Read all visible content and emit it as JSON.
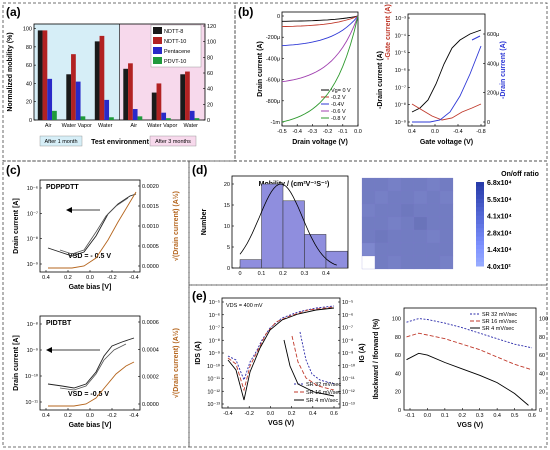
{
  "panels": {
    "a": "(a)",
    "b": "(b)",
    "c": "(c)",
    "d": "(d)",
    "e": "(e)"
  },
  "chart_data": [
    {
      "panel": "(a)",
      "type": "bar",
      "ylabel": "Normalized mobility (%)",
      "xlabel": "Test environment",
      "yticks": [
        "0",
        "20",
        "40",
        "60",
        "80",
        "100"
      ],
      "y2ticks": [
        "0",
        "20",
        "40",
        "60",
        "80",
        "100",
        "120"
      ],
      "ylim": [
        0,
        105
      ],
      "categories": [
        "Air",
        "Water Vapor",
        "Water",
        "Air",
        "Water Vapor",
        "Water"
      ],
      "groups": [
        "After 1 month",
        "After 3 months"
      ],
      "series": [
        {
          "name": "NDTT-8",
          "color": "#1a1a1a",
          "values": [
            98,
            50,
            86,
            56,
            30,
            50
          ]
        },
        {
          "name": "NDTT-10",
          "color": "#b22222",
          "values": [
            98,
            72,
            92,
            62,
            40,
            53
          ]
        },
        {
          "name": "Pentacene",
          "color": "#2929c8",
          "values": [
            45,
            42,
            22,
            12,
            8,
            10
          ]
        },
        {
          "name": "PDVT-10",
          "color": "#1f9a3c",
          "values": [
            10,
            4,
            3,
            4,
            2,
            2
          ]
        }
      ]
    },
    {
      "panel": "(b)",
      "type": "line",
      "xlabel": "Drain voltage (V)",
      "ylabel": "Drain current (A)",
      "xticks": [
        "-0.5",
        "-0.4",
        "-0.3",
        "-0.2",
        "-0.1",
        "0.0"
      ],
      "yticks": [
        "0",
        "-200μ",
        "-400μ",
        "-600μ",
        "-800μ",
        "-1m"
      ],
      "legend_title": "Vg= 0 V",
      "series": [
        {
          "name": "Vg= 0 V",
          "color": "#000000",
          "end": 0.05
        },
        {
          "name": "-0.2 V",
          "color": "#c0392b",
          "end": 0.1
        },
        {
          "name": "-0.4V",
          "color": "#2e38d6",
          "end": 0.28
        },
        {
          "name": "-0.6 V",
          "color": "#a040b0",
          "end": 0.62
        },
        {
          "name": "-0.8 V",
          "color": "#2e9a2e",
          "end": 1.0
        }
      ]
    },
    {
      "panel": "(b)-right",
      "type": "line",
      "xlabel": "Gate voltage (V)",
      "ylabel_left": "-Drain current (A)",
      "ylabel_left2": "-Gate current (A)",
      "ylabel_right": "-Drain current (A)",
      "xticks": [
        "0.4",
        "0.0",
        "-0.4",
        "-0.8"
      ],
      "yticks": [
        "10⁻³",
        "10⁻⁴",
        "10⁻⁵",
        "10⁻⁶",
        "10⁻⁷",
        "10⁻⁸",
        "10⁻⁹"
      ],
      "y2ticks": [
        "600μ",
        "400μ",
        "200μ",
        "0"
      ]
    },
    {
      "panel": "(c)-top",
      "type": "line",
      "title": "PDPPDTT",
      "xlabel": "Gate bias [V]",
      "ylabel": "Drain current [A]",
      "ylabel_right": "√(Drain current) (A½)",
      "xticks": [
        "0.4",
        "0.2",
        "0.0",
        "-0.2",
        "-0.4"
      ],
      "yticks": [
        "10⁻⁶",
        "10⁻⁷",
        "10⁻⁸",
        "10⁻⁹"
      ],
      "y2ticks": [
        "0.0020",
        "0.0015",
        "0.0010",
        "0.0005",
        "0.0000"
      ],
      "annotation": "VSD = - 0.5 V"
    },
    {
      "panel": "(c)-bottom",
      "type": "line",
      "title": "PIDTBT",
      "xlabel": "Gate bias [V]",
      "ylabel": "Drain current [A]",
      "ylabel_right": "√(Drain current) (A½)",
      "xticks": [
        "0.4",
        "0.2",
        "0.0",
        "-0.2",
        "-0.4"
      ],
      "yticks": [
        "10⁻⁸",
        "10⁻⁹",
        "10⁻¹⁰",
        "10⁻¹¹"
      ],
      "y2ticks": [
        "0.0006",
        "0.0004",
        "0.0002",
        "0.0000"
      ],
      "annotation": "VSD = -0.5 V"
    },
    {
      "panel": "(d)-left",
      "type": "bar",
      "title": "Mobility / (cm²V⁻¹S⁻¹)",
      "ylabel": "Number",
      "xticks": [
        "0",
        "0.1",
        "0.2",
        "0.3",
        "0.4"
      ],
      "yticks": [
        "0",
        "5",
        "10",
        "15",
        "20"
      ],
      "bins": [
        0.05,
        0.15,
        0.25,
        0.35,
        0.45
      ],
      "values": [
        2,
        20,
        16,
        8,
        4
      ],
      "xlim": [
        0,
        0.5
      ],
      "ylim": [
        0,
        22
      ]
    },
    {
      "panel": "(d)-right",
      "type": "heatmap",
      "title": "On/off ratio",
      "colorbar": [
        "6.8x10⁴",
        "5.5x10⁴",
        "4.1x10⁴",
        "2.8x10⁴",
        "1.4x10⁴",
        "4.0x10²"
      ],
      "grid": [
        [
          0.55,
          0.55,
          0.6,
          0.55,
          0.55,
          0.6,
          0.55
        ],
        [
          0.55,
          0.6,
          0.55,
          0.55,
          0.6,
          0.55,
          0.6
        ],
        [
          0.6,
          0.55,
          0.55,
          0.5,
          0.55,
          0.55,
          0.55
        ],
        [
          0.55,
          0.55,
          0.6,
          0.55,
          0.45,
          0.55,
          0.55
        ],
        [
          0.55,
          0.5,
          0.55,
          0.55,
          0.55,
          0.6,
          0.55
        ],
        [
          0.7,
          0.55,
          0.55,
          0.55,
          0.55,
          0.55,
          0.55
        ],
        [
          0.0,
          0.55,
          0.6,
          0.55,
          0.55,
          0.55,
          0.6
        ]
      ]
    },
    {
      "panel": "(e)-left",
      "type": "line",
      "annotation": "VDS = 400 mV",
      "xlabel": "VGS (V)",
      "ylabel": "IDS (A)",
      "ylabel_right": "IG (A)",
      "xticks": [
        "-0.4",
        "-0.2",
        "0.0",
        "0.2",
        "0.4",
        "0.6"
      ],
      "yticks": [
        "10⁻⁵",
        "10⁻⁶",
        "10⁻⁷",
        "10⁻⁸",
        "10⁻⁹",
        "10⁻¹⁰",
        "10⁻¹¹",
        "10⁻¹²",
        "10⁻¹³"
      ],
      "y2ticks": [
        "10⁻⁵",
        "10⁻⁶",
        "10⁻⁷",
        "10⁻⁸",
        "10⁻⁹",
        "10⁻¹⁰",
        "10⁻¹¹",
        "10⁻¹²",
        "10⁻¹³"
      ],
      "series": [
        {
          "name": "SR 32 mV/sec",
          "color": "#2a2aaa",
          "dash": "2,1.5"
        },
        {
          "name": "SR 16 mV/sec",
          "color": "#c0392b",
          "dash": "4,2"
        },
        {
          "name": "SR  4 mV/sec",
          "color": "#000000",
          "dash": ""
        }
      ]
    },
    {
      "panel": "(e)-right",
      "type": "line",
      "xlabel": "VGS (V)",
      "ylabel": "Ibackward / Iforward (%)",
      "xticks": [
        "-0.1",
        "0.0",
        "0.1",
        "0.2",
        "0.3",
        "0.4",
        "0.5",
        "0.6"
      ],
      "yticks": [
        "0",
        "20",
        "40",
        "60",
        "80",
        "100"
      ],
      "xlim": [
        -0.15,
        0.62
      ],
      "ylim": [
        0,
        105
      ],
      "series": [
        {
          "name": "SR 32 mV/sec",
          "color": "#2a2aaa",
          "dash": "2,1.5",
          "points": [
            [
              -0.12,
              96
            ],
            [
              -0.05,
              100
            ],
            [
              0.0,
              99
            ],
            [
              0.1,
              95
            ],
            [
              0.2,
              90
            ],
            [
              0.3,
              84
            ],
            [
              0.4,
              78
            ],
            [
              0.5,
              72
            ],
            [
              0.6,
              68
            ]
          ]
        },
        {
          "name": "SR 16 mV/sec",
          "color": "#c0392b",
          "dash": "4,2",
          "points": [
            [
              -0.12,
              80
            ],
            [
              -0.05,
              84
            ],
            [
              0.0,
              82
            ],
            [
              0.1,
              78
            ],
            [
              0.2,
              72
            ],
            [
              0.3,
              66
            ],
            [
              0.4,
              58
            ],
            [
              0.5,
              50
            ],
            [
              0.6,
              44
            ]
          ]
        },
        {
          "name": "SR  4 mV/sec",
          "color": "#000000",
          "dash": "",
          "points": [
            [
              -0.12,
              55
            ],
            [
              -0.05,
              62
            ],
            [
              0.0,
              60
            ],
            [
              0.1,
              52
            ],
            [
              0.2,
              45
            ],
            [
              0.3,
              38
            ],
            [
              0.4,
              30
            ],
            [
              0.5,
              18
            ],
            [
              0.58,
              5
            ]
          ]
        }
      ]
    }
  ],
  "labels": {
    "after1": "After 1 month",
    "after3": "After 3 months",
    "ns_top": "VSD = - 0.5 V",
    "ns_bot": "VSD = -0.5 V"
  }
}
